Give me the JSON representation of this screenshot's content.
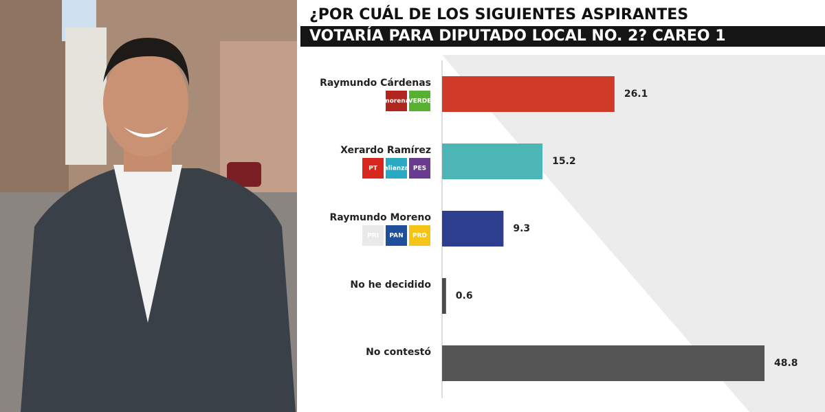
{
  "chart_data": {
    "type": "hbar",
    "title": "¿POR CUÁL DE LOS SIGUIENTES ASPIRANTES",
    "subtitle": "VOTARÍA PARA DIPUTADO LOCAL NO. 2? CAREO 1",
    "categories": [
      "Raymundo Cárdenas",
      "Xerardo Ramírez",
      "Raymundo Moreno",
      "No he decidido",
      "No contestó"
    ],
    "values": [
      26.1,
      15.2,
      9.3,
      0.6,
      48.8
    ],
    "colors": [
      "#d03a28",
      "#4cb6b6",
      "#2e3e8e",
      "#4a4a4a",
      "#555555"
    ],
    "party_logos": [
      [
        {
          "label": "morena",
          "color": "#b0261f"
        },
        {
          "label": "VERDE",
          "color": "#58b031"
        }
      ],
      [
        {
          "label": "PT",
          "color": "#d7261e"
        },
        {
          "label": "alianza",
          "color": "#2aa9c2"
        },
        {
          "label": "PES",
          "color": "#6a3a8e"
        }
      ],
      [
        {
          "label": "PRI",
          "color": "#e9e9e9"
        },
        {
          "label": "PAN",
          "color": "#1f4e9a"
        },
        {
          "label": "PRD",
          "color": "#f4c417"
        }
      ],
      [],
      []
    ]
  }
}
